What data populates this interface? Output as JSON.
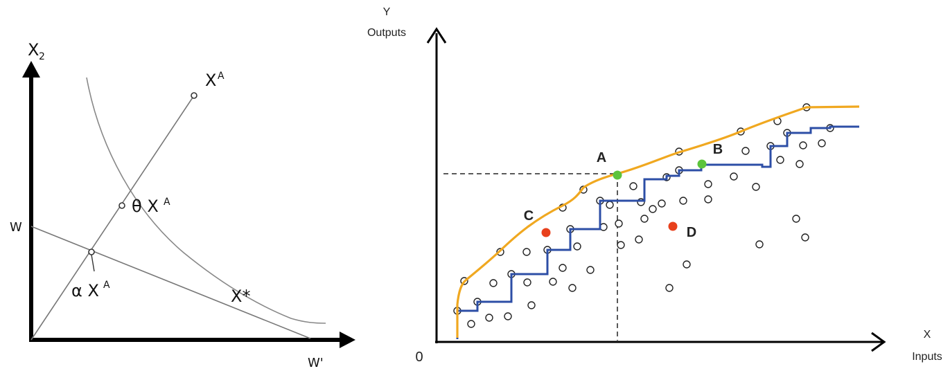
{
  "left_diagram": {
    "y_axis_label": "X",
    "y_axis_sub": "2",
    "w_label": "W",
    "w_prime_label": "W'",
    "xa_label": "X",
    "xa_sup": "A",
    "theta_label": "θ X",
    "theta_sup": "A",
    "alpha_label": "α X",
    "alpha_sup": "A",
    "xstar_label": "X*"
  },
  "right_diagram": {
    "y_axis_label": "Y",
    "y_axis_sub": "Outputs",
    "x_axis_label": "X",
    "x_axis_sub": "Inputs",
    "origin_label": "0",
    "points": {
      "A": "A",
      "B": "B",
      "C": "C",
      "D": "D"
    },
    "colors": {
      "frontier": "#f0a820",
      "step": "#2c4ea6",
      "efficient_point": "#5cc43c",
      "inefficient_point": "#e8401c"
    }
  }
}
